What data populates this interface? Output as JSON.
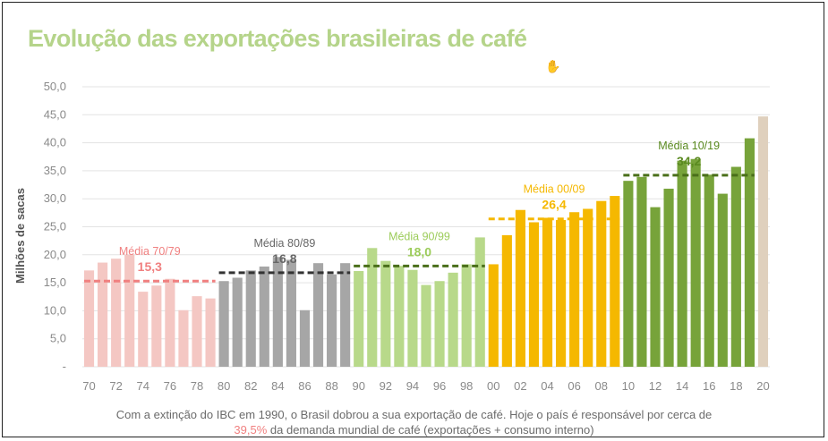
{
  "title": "Evolução das exportações brasileiras de café",
  "caption": {
    "text_before": "Com a extinção do IBC em 1990, o Brasil dobrou a sua exportação de café. Hoje o país é responsável por cerca de",
    "highlight": "39,5%",
    "text_after": "da demanda mundial de café (exportações + consumo interno)"
  },
  "chart_data": {
    "type": "bar",
    "title": "Evolução das exportações brasileiras de café",
    "ylabel": "Milhões de sacas",
    "xlabel": "",
    "ylim": [
      0,
      50
    ],
    "yticks": [
      "-",
      "5,0",
      "10,0",
      "15,0",
      "20,0",
      "25,0",
      "30,0",
      "35,0",
      "40,0",
      "45,0",
      "50,0"
    ],
    "grid": true,
    "x_tick_labels": [
      "70",
      "72",
      "74",
      "76",
      "78",
      "80",
      "82",
      "84",
      "86",
      "88",
      "90",
      "92",
      "94",
      "96",
      "98",
      "00",
      "02",
      "04",
      "06",
      "08",
      "10",
      "12",
      "14",
      "16",
      "18",
      "20"
    ],
    "categories": [
      "1970",
      "1971",
      "1972",
      "1973",
      "1974",
      "1975",
      "1976",
      "1977",
      "1978",
      "1979",
      "1980",
      "1981",
      "1982",
      "1983",
      "1984",
      "1985",
      "1986",
      "1987",
      "1988",
      "1989",
      "1990",
      "1991",
      "1992",
      "1993",
      "1994",
      "1995",
      "1996",
      "1997",
      "1998",
      "1999",
      "2000",
      "2001",
      "2002",
      "2003",
      "2004",
      "2005",
      "2006",
      "2007",
      "2008",
      "2009",
      "2010",
      "2011",
      "2012",
      "2013",
      "2014",
      "2015",
      "2016",
      "2017",
      "2018",
      "2019",
      "2020"
    ],
    "values": [
      17.2,
      18.6,
      19.3,
      20.0,
      13.4,
      14.5,
      15.7,
      10.1,
      12.6,
      12.2,
      15.3,
      15.9,
      17.2,
      17.9,
      19.6,
      19.1,
      10.1,
      18.5,
      16.5,
      18.5,
      17.1,
      21.2,
      18.9,
      18.0,
      17.3,
      14.6,
      15.3,
      16.8,
      18.3,
      23.1,
      18.3,
      23.5,
      28.0,
      25.8,
      26.6,
      26.2,
      27.6,
      28.2,
      29.6,
      30.5,
      33.2,
      33.9,
      28.5,
      31.8,
      36.8,
      37.1,
      34.3,
      30.9,
      35.7,
      40.8,
      44.7
    ],
    "bar_colors": {
      "1970-1979": "#f4c7c3",
      "1980-1989": "#a6a6a6",
      "1990-1999": "#b8d98a",
      "2000-2009": "#f5b800",
      "2010-2019": "#77a33a",
      "2020": "#dfd0bd"
    },
    "averages": [
      {
        "label": "Média 70/79",
        "value": 15.3,
        "value_label": "15,3",
        "color": "#f08080",
        "label_color": "#f08080",
        "from": 0,
        "to": 9
      },
      {
        "label": "Média 80/89",
        "value": 16.8,
        "value_label": "16,8",
        "color": "#333333",
        "label_color": "#666666",
        "from": 10,
        "to": 19
      },
      {
        "label": "Média 90/99",
        "value": 18.0,
        "value_label": "18,0",
        "color": "#4a6f1a",
        "label_color": "#9ccc5a",
        "from": 20,
        "to": 29
      },
      {
        "label": "Média 00/09",
        "value": 26.4,
        "value_label": "26,4",
        "color": "#f5b800",
        "label_color": "#f5b800",
        "from": 30,
        "to": 39
      },
      {
        "label": "Média 10/19",
        "value": 34.2,
        "value_label": "34,2",
        "color": "#4a6f1a",
        "label_color": "#5a8a20",
        "from": 40,
        "to": 49
      }
    ]
  }
}
